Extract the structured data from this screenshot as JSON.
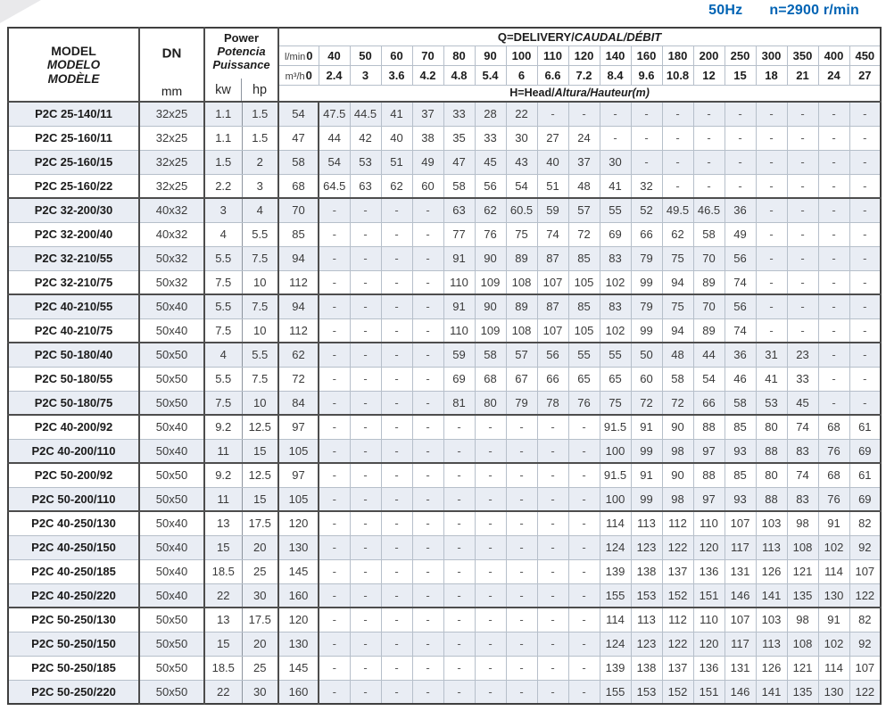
{
  "title": {
    "frequency": "50Hz",
    "speed": "n=2900 r/min"
  },
  "colors": {
    "accent_blue": "#0063b4",
    "row_band": "#e9edf4",
    "grid_light": "#b6bfca",
    "grid_dark": "#4d4d4d"
  },
  "table": {
    "header": {
      "model_lines": [
        "MODEL",
        "MODELO",
        "MODÈLE"
      ],
      "dn_label": "DN",
      "dn_unit": "mm",
      "power_lines": [
        "Power",
        "Potencia",
        "Puissance"
      ],
      "power_units": [
        "kw",
        "hp"
      ],
      "q_label_plain": "Q=DELIVERY/",
      "q_label_italic": "CAUDAL/DÉBIT",
      "h_label_plain": "H=Head/",
      "h_label_italic": "Altura/Hauteur(m)",
      "lmin_label": "l/min",
      "m3h_label": "m³/h",
      "lmin_values": [
        "0",
        "40",
        "50",
        "60",
        "70",
        "80",
        "90",
        "100",
        "110",
        "120",
        "140",
        "160",
        "180",
        "200",
        "250",
        "300",
        "350",
        "400",
        "450"
      ],
      "m3h_values": [
        "0",
        "2.4",
        "3",
        "3.6",
        "4.2",
        "4.8",
        "5.4",
        "6",
        "6.6",
        "7.2",
        "8.4",
        "9.6",
        "10.8",
        "12",
        "15",
        "18",
        "21",
        "24",
        "27"
      ]
    },
    "rows": [
      {
        "model": "P2C 25-140/11",
        "dn": "32x25",
        "kw": "1.1",
        "hp": "1.5",
        "group": true,
        "heads": [
          "54",
          "47.5",
          "44.5",
          "41",
          "37",
          "33",
          "28",
          "22",
          "-",
          "-",
          "-",
          "-",
          "-",
          "-",
          "-",
          "-",
          "-",
          "-",
          "-"
        ]
      },
      {
        "model": "P2C 25-160/11",
        "dn": "32x25",
        "kw": "1.1",
        "hp": "1.5",
        "group": false,
        "heads": [
          "47",
          "44",
          "42",
          "40",
          "38",
          "35",
          "33",
          "30",
          "27",
          "24",
          "-",
          "-",
          "-",
          "-",
          "-",
          "-",
          "-",
          "-",
          "-"
        ]
      },
      {
        "model": "P2C 25-160/15",
        "dn": "32x25",
        "kw": "1.5",
        "hp": "2",
        "group": false,
        "heads": [
          "58",
          "54",
          "53",
          "51",
          "49",
          "47",
          "45",
          "43",
          "40",
          "37",
          "30",
          "-",
          "-",
          "-",
          "-",
          "-",
          "-",
          "-",
          "-"
        ]
      },
      {
        "model": "P2C 25-160/22",
        "dn": "32x25",
        "kw": "2.2",
        "hp": "3",
        "group": false,
        "heads": [
          "68",
          "64.5",
          "63",
          "62",
          "60",
          "58",
          "56",
          "54",
          "51",
          "48",
          "41",
          "32",
          "-",
          "-",
          "-",
          "-",
          "-",
          "-",
          "-"
        ]
      },
      {
        "model": "P2C 32-200/30",
        "dn": "40x32",
        "kw": "3",
        "hp": "4",
        "group": true,
        "heads": [
          "70",
          "-",
          "-",
          "-",
          "-",
          "63",
          "62",
          "60.5",
          "59",
          "57",
          "55",
          "52",
          "49.5",
          "46.5",
          "36",
          "-",
          "-",
          "-",
          "-"
        ]
      },
      {
        "model": "P2C 32-200/40",
        "dn": "40x32",
        "kw": "4",
        "hp": "5.5",
        "group": false,
        "heads": [
          "85",
          "-",
          "-",
          "-",
          "-",
          "77",
          "76",
          "75",
          "74",
          "72",
          "69",
          "66",
          "62",
          "58",
          "49",
          "-",
          "-",
          "-",
          "-"
        ]
      },
      {
        "model": "P2C 32-210/55",
        "dn": "50x32",
        "kw": "5.5",
        "hp": "7.5",
        "group": false,
        "heads": [
          "94",
          "-",
          "-",
          "-",
          "-",
          "91",
          "90",
          "89",
          "87",
          "85",
          "83",
          "79",
          "75",
          "70",
          "56",
          "-",
          "-",
          "-",
          "-"
        ]
      },
      {
        "model": "P2C 32-210/75",
        "dn": "50x32",
        "kw": "7.5",
        "hp": "10",
        "group": false,
        "heads": [
          "112",
          "-",
          "-",
          "-",
          "-",
          "110",
          "109",
          "108",
          "107",
          "105",
          "102",
          "99",
          "94",
          "89",
          "74",
          "-",
          "-",
          "-",
          "-"
        ]
      },
      {
        "model": "P2C 40-210/55",
        "dn": "50x40",
        "kw": "5.5",
        "hp": "7.5",
        "group": true,
        "heads": [
          "94",
          "-",
          "-",
          "-",
          "-",
          "91",
          "90",
          "89",
          "87",
          "85",
          "83",
          "79",
          "75",
          "70",
          "56",
          "-",
          "-",
          "-",
          "-"
        ]
      },
      {
        "model": "P2C 40-210/75",
        "dn": "50x40",
        "kw": "7.5",
        "hp": "10",
        "group": false,
        "heads": [
          "112",
          "-",
          "-",
          "-",
          "-",
          "110",
          "109",
          "108",
          "107",
          "105",
          "102",
          "99",
          "94",
          "89",
          "74",
          "-",
          "-",
          "-",
          "-"
        ]
      },
      {
        "model": "P2C 50-180/40",
        "dn": "50x50",
        "kw": "4",
        "hp": "5.5",
        "group": true,
        "heads": [
          "62",
          "-",
          "-",
          "-",
          "-",
          "59",
          "58",
          "57",
          "56",
          "55",
          "55",
          "50",
          "48",
          "44",
          "36",
          "31",
          "23",
          "-",
          "-"
        ]
      },
      {
        "model": "P2C 50-180/55",
        "dn": "50x50",
        "kw": "5.5",
        "hp": "7.5",
        "group": false,
        "heads": [
          "72",
          "-",
          "-",
          "-",
          "-",
          "69",
          "68",
          "67",
          "66",
          "65",
          "65",
          "60",
          "58",
          "54",
          "46",
          "41",
          "33",
          "-",
          "-"
        ]
      },
      {
        "model": "P2C 50-180/75",
        "dn": "50x50",
        "kw": "7.5",
        "hp": "10",
        "group": false,
        "heads": [
          "84",
          "-",
          "-",
          "-",
          "-",
          "81",
          "80",
          "79",
          "78",
          "76",
          "75",
          "72",
          "72",
          "66",
          "58",
          "53",
          "45",
          "-",
          "-"
        ]
      },
      {
        "model": "P2C 40-200/92",
        "dn": "50x40",
        "kw": "9.2",
        "hp": "12.5",
        "group": true,
        "heads": [
          "97",
          "-",
          "-",
          "-",
          "-",
          "-",
          "-",
          "-",
          "-",
          "-",
          "91.5",
          "91",
          "90",
          "88",
          "85",
          "80",
          "74",
          "68",
          "61"
        ]
      },
      {
        "model": "P2C 40-200/110",
        "dn": "50x40",
        "kw": "11",
        "hp": "15",
        "group": false,
        "heads": [
          "105",
          "-",
          "-",
          "-",
          "-",
          "-",
          "-",
          "-",
          "-",
          "-",
          "100",
          "99",
          "98",
          "97",
          "93",
          "88",
          "83",
          "76",
          "69"
        ]
      },
      {
        "model": "P2C 50-200/92",
        "dn": "50x50",
        "kw": "9.2",
        "hp": "12.5",
        "group": true,
        "heads": [
          "97",
          "-",
          "-",
          "-",
          "-",
          "-",
          "-",
          "-",
          "-",
          "-",
          "91.5",
          "91",
          "90",
          "88",
          "85",
          "80",
          "74",
          "68",
          "61"
        ]
      },
      {
        "model": "P2C 50-200/110",
        "dn": "50x50",
        "kw": "11",
        "hp": "15",
        "group": false,
        "heads": [
          "105",
          "-",
          "-",
          "-",
          "-",
          "-",
          "-",
          "-",
          "-",
          "-",
          "100",
          "99",
          "98",
          "97",
          "93",
          "88",
          "83",
          "76",
          "69"
        ]
      },
      {
        "model": "P2C 40-250/130",
        "dn": "50x40",
        "kw": "13",
        "hp": "17.5",
        "group": true,
        "heads": [
          "120",
          "-",
          "-",
          "-",
          "-",
          "-",
          "-",
          "-",
          "-",
          "-",
          "114",
          "113",
          "112",
          "110",
          "107",
          "103",
          "98",
          "91",
          "82"
        ]
      },
      {
        "model": "P2C 40-250/150",
        "dn": "50x40",
        "kw": "15",
        "hp": "20",
        "group": false,
        "heads": [
          "130",
          "-",
          "-",
          "-",
          "-",
          "-",
          "-",
          "-",
          "-",
          "-",
          "124",
          "123",
          "122",
          "120",
          "117",
          "113",
          "108",
          "102",
          "92"
        ]
      },
      {
        "model": "P2C 40-250/185",
        "dn": "50x40",
        "kw": "18.5",
        "hp": "25",
        "group": false,
        "heads": [
          "145",
          "-",
          "-",
          "-",
          "-",
          "-",
          "-",
          "-",
          "-",
          "-",
          "139",
          "138",
          "137",
          "136",
          "131",
          "126",
          "121",
          "114",
          "107"
        ]
      },
      {
        "model": "P2C 40-250/220",
        "dn": "50x40",
        "kw": "22",
        "hp": "30",
        "group": false,
        "heads": [
          "160",
          "-",
          "-",
          "-",
          "-",
          "-",
          "-",
          "-",
          "-",
          "-",
          "155",
          "153",
          "152",
          "151",
          "146",
          "141",
          "135",
          "130",
          "122"
        ]
      },
      {
        "model": "P2C 50-250/130",
        "dn": "50x50",
        "kw": "13",
        "hp": "17.5",
        "group": true,
        "heads": [
          "120",
          "-",
          "-",
          "-",
          "-",
          "-",
          "-",
          "-",
          "-",
          "-",
          "114",
          "113",
          "112",
          "110",
          "107",
          "103",
          "98",
          "91",
          "82"
        ]
      },
      {
        "model": "P2C 50-250/150",
        "dn": "50x50",
        "kw": "15",
        "hp": "20",
        "group": false,
        "heads": [
          "130",
          "-",
          "-",
          "-",
          "-",
          "-",
          "-",
          "-",
          "-",
          "-",
          "124",
          "123",
          "122",
          "120",
          "117",
          "113",
          "108",
          "102",
          "92"
        ]
      },
      {
        "model": "P2C 50-250/185",
        "dn": "50x50",
        "kw": "18.5",
        "hp": "25",
        "group": false,
        "heads": [
          "145",
          "-",
          "-",
          "-",
          "-",
          "-",
          "-",
          "-",
          "-",
          "-",
          "139",
          "138",
          "137",
          "136",
          "131",
          "126",
          "121",
          "114",
          "107"
        ]
      },
      {
        "model": "P2C 50-250/220",
        "dn": "50x50",
        "kw": "22",
        "hp": "30",
        "group": false,
        "heads": [
          "160",
          "-",
          "-",
          "-",
          "-",
          "-",
          "-",
          "-",
          "-",
          "-",
          "155",
          "153",
          "152",
          "151",
          "146",
          "141",
          "135",
          "130",
          "122"
        ]
      }
    ]
  }
}
